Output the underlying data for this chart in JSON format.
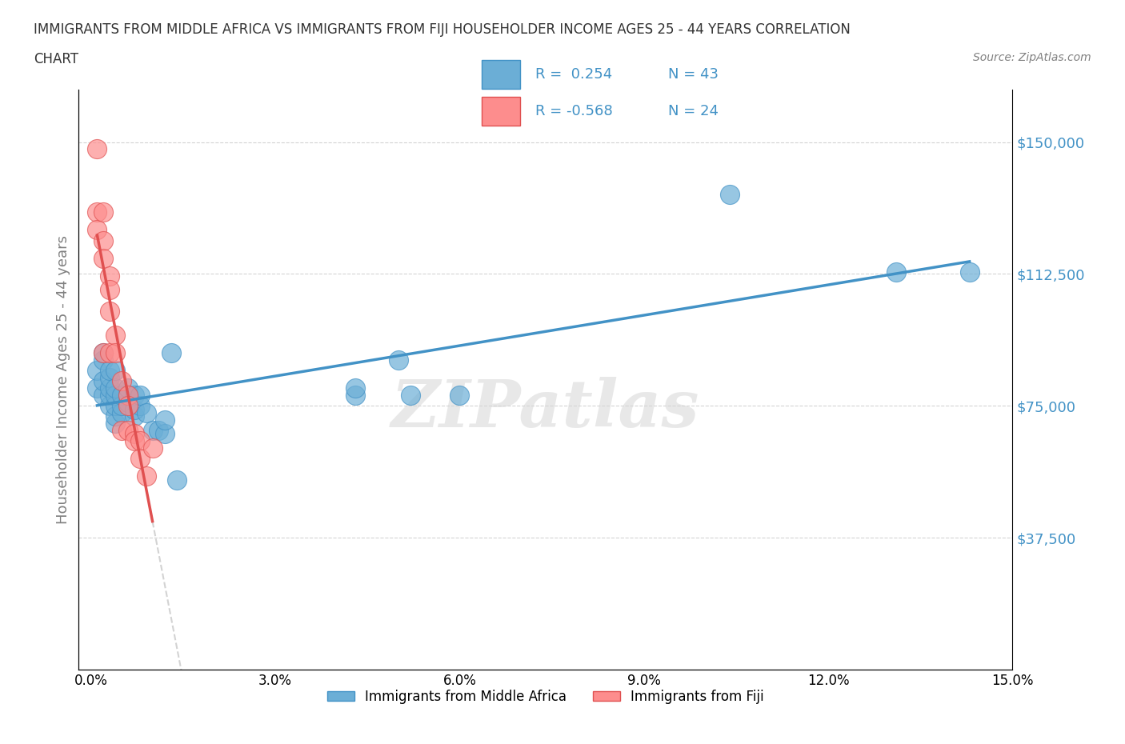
{
  "title_line1": "IMMIGRANTS FROM MIDDLE AFRICA VS IMMIGRANTS FROM FIJI HOUSEHOLDER INCOME AGES 25 - 44 YEARS CORRELATION",
  "title_line2": "CHART",
  "source_text": "Source: ZipAtlas.com",
  "xlabel": "",
  "ylabel": "Householder Income Ages 25 - 44 years",
  "xlim": [
    0.0,
    0.15
  ],
  "ylim": [
    0,
    165000
  ],
  "yticks": [
    0,
    37500,
    75000,
    112500,
    150000
  ],
  "ytick_labels": [
    "",
    "$37,500",
    "$75,000",
    "$112,500",
    "$150,000"
  ],
  "xticks": [
    0.0,
    0.03,
    0.06,
    0.09,
    0.12,
    0.15
  ],
  "xtick_labels": [
    "0.0%",
    "3.0%",
    "6.0%",
    "9.0%",
    "12.0%",
    "15.0%"
  ],
  "legend_r1": "R =  0.254",
  "legend_n1": "N = 43",
  "legend_r2": "R = -0.568",
  "legend_n2": "N = 24",
  "legend_label1": "Immigrants from Middle Africa",
  "legend_label2": "Immigrants from Fiji",
  "color_blue": "#6baed6",
  "color_pink": "#fd8d8d",
  "color_blue_line": "#4292c6",
  "color_pink_line": "#fb6a4a",
  "watermark": "ZIPatlas",
  "blue_x": [
    0.001,
    0.001,
    0.002,
    0.002,
    0.002,
    0.002,
    0.003,
    0.003,
    0.003,
    0.003,
    0.003,
    0.004,
    0.004,
    0.004,
    0.004,
    0.004,
    0.004,
    0.005,
    0.005,
    0.005,
    0.006,
    0.006,
    0.006,
    0.007,
    0.007,
    0.007,
    0.008,
    0.008,
    0.009,
    0.01,
    0.011,
    0.012,
    0.012,
    0.013,
    0.014,
    0.043,
    0.043,
    0.05,
    0.052,
    0.06,
    0.104,
    0.131,
    0.143
  ],
  "blue_y": [
    80000,
    85000,
    78000,
    82000,
    88000,
    90000,
    75000,
    78000,
    80000,
    83000,
    85000,
    70000,
    72000,
    75000,
    78000,
    80000,
    85000,
    73000,
    75000,
    78000,
    76000,
    78000,
    80000,
    72000,
    74000,
    78000,
    75000,
    78000,
    73000,
    68000,
    68000,
    67000,
    71000,
    90000,
    54000,
    78000,
    80000,
    88000,
    78000,
    78000,
    135000,
    113000,
    113000
  ],
  "pink_x": [
    0.001,
    0.001,
    0.001,
    0.002,
    0.002,
    0.002,
    0.002,
    0.003,
    0.003,
    0.003,
    0.003,
    0.004,
    0.004,
    0.005,
    0.005,
    0.006,
    0.006,
    0.006,
    0.007,
    0.007,
    0.008,
    0.008,
    0.009,
    0.01
  ],
  "pink_y": [
    148000,
    130000,
    125000,
    130000,
    122000,
    117000,
    90000,
    112000,
    108000,
    102000,
    90000,
    95000,
    90000,
    82000,
    68000,
    78000,
    75000,
    68000,
    67000,
    65000,
    65000,
    60000,
    55000,
    63000
  ]
}
